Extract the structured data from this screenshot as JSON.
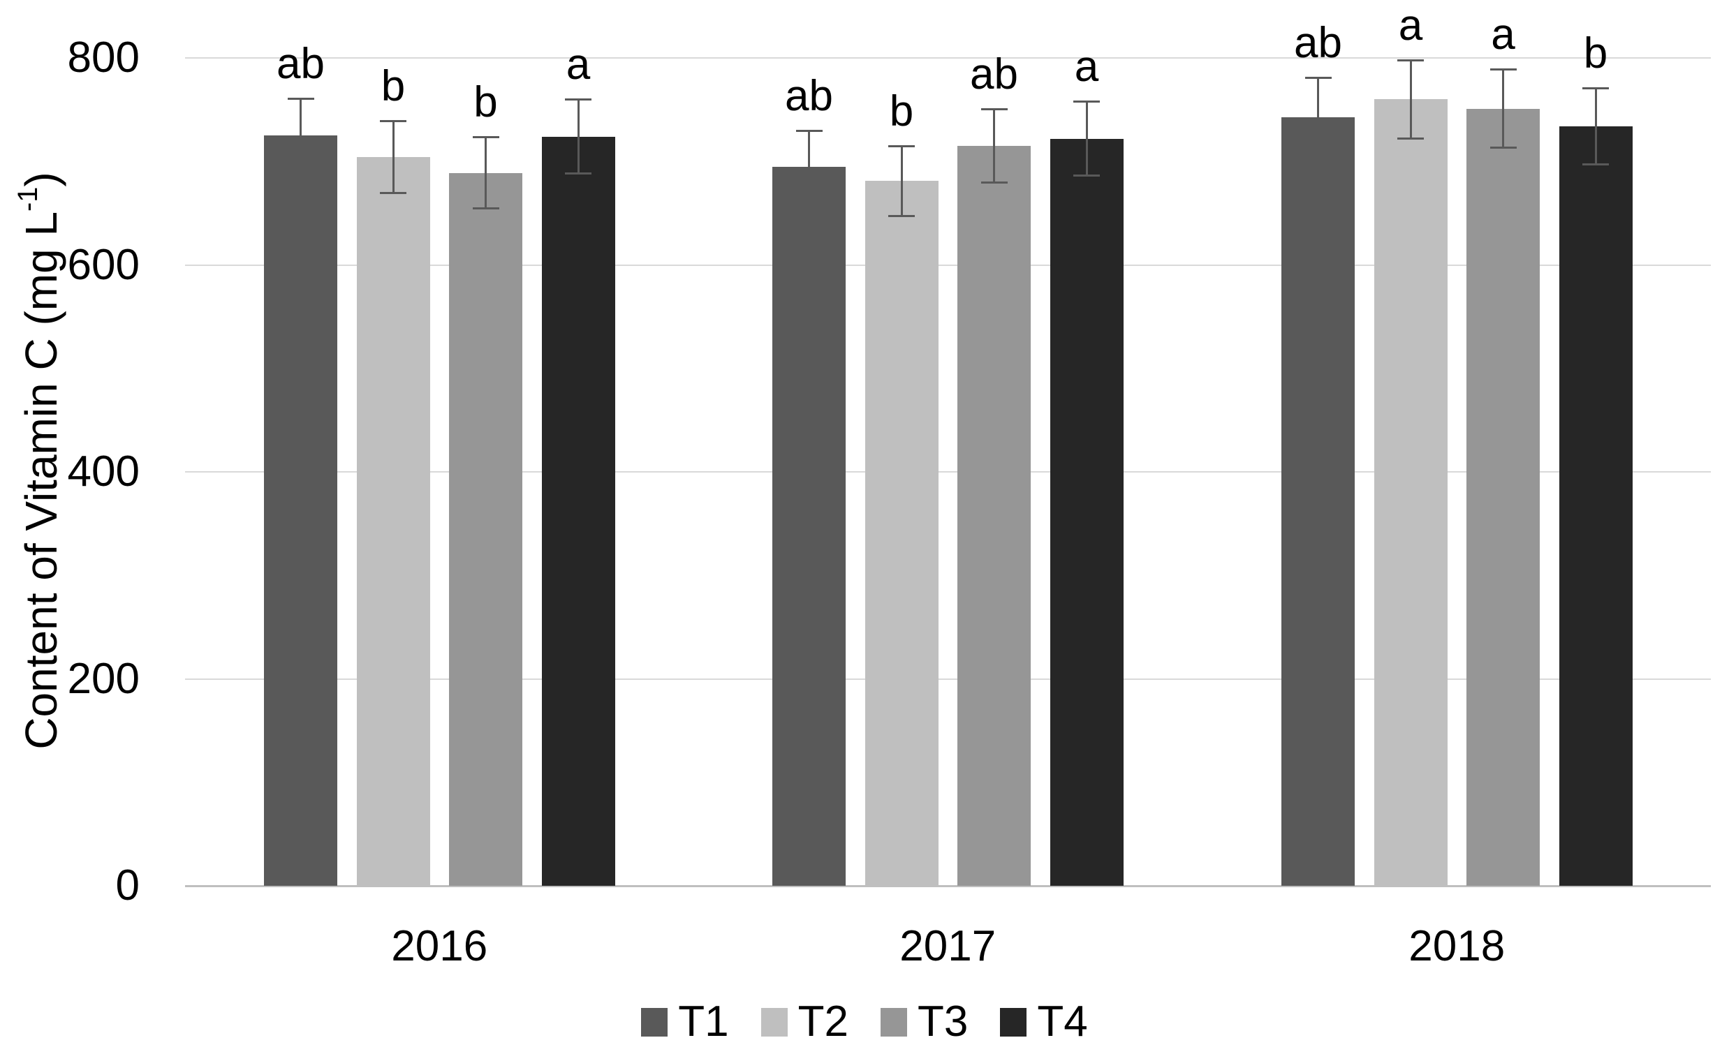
{
  "chart_data": {
    "type": "bar",
    "title": "",
    "ylabel": {
      "prefix": "Content of Vitamin C (mg L",
      "superscript": "-1",
      "suffix": ")"
    },
    "categories": [
      "2016",
      "2017",
      "2018"
    ],
    "series": [
      {
        "name": "T1",
        "color": "#595959",
        "values": [
          725,
          695,
          743
        ],
        "errors": [
          36,
          35,
          38
        ],
        "letters": [
          "ab",
          "ab",
          "ab"
        ]
      },
      {
        "name": "T2",
        "color": "#bfbfbf",
        "values": [
          704,
          681,
          760
        ],
        "errors": [
          35,
          34,
          38
        ],
        "letters": [
          "b",
          "b",
          "a"
        ]
      },
      {
        "name": "T3",
        "color": "#969696",
        "values": [
          689,
          715,
          751
        ],
        "errors": [
          35,
          36,
          38
        ],
        "letters": [
          "b",
          "ab",
          "a"
        ]
      },
      {
        "name": "T4",
        "color": "#262626",
        "values": [
          724,
          722,
          734
        ],
        "errors": [
          36,
          36,
          37
        ],
        "letters": [
          "a",
          "a",
          "b"
        ]
      }
    ],
    "y_axis": {
      "min": 0,
      "max": 800,
      "tick_step": 200,
      "ticks": [
        800,
        600,
        400,
        200,
        0
      ]
    },
    "grid": true,
    "legend_position": "bottom",
    "colors": {
      "grid_color": "#d9d9d9",
      "axis_line_color": "#bfbfbf",
      "error_bar_color": "#595959",
      "text_color": "#000000",
      "background": "#ffffff"
    }
  }
}
